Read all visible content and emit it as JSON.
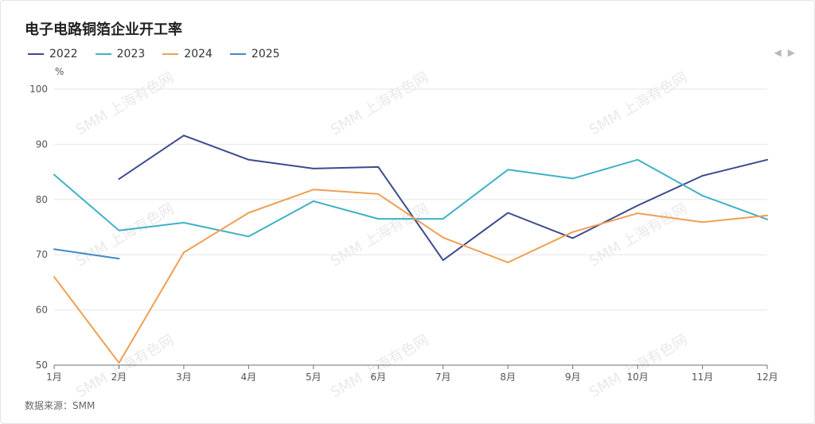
{
  "chart_data": {
    "type": "line",
    "title": "电子电路铜箔企业开工率",
    "unit": "%",
    "source": "数据来源：SMM",
    "watermark": "SMM 上海有色网",
    "categories": [
      "1月",
      "2月",
      "3月",
      "4月",
      "5月",
      "6月",
      "7月",
      "8月",
      "9月",
      "10月",
      "11月",
      "12月"
    ],
    "ylim": [
      50,
      100
    ],
    "yticks": [
      50,
      60,
      70,
      80,
      90,
      100
    ],
    "grid": true,
    "legend_position": "top-left",
    "series": [
      {
        "name": "2022",
        "color": "#3d4a8c",
        "values": [
          null,
          83.7,
          91.6,
          87.2,
          85.6,
          85.9,
          69.0,
          77.6,
          73.0,
          78.9,
          84.3,
          87.2
        ]
      },
      {
        "name": "2023",
        "color": "#3fb1c6",
        "values": [
          84.5,
          74.4,
          75.8,
          73.3,
          79.7,
          76.5,
          76.5,
          85.4,
          83.8,
          87.2,
          80.7,
          76.4
        ]
      },
      {
        "name": "2024",
        "color": "#ef9f53",
        "values": [
          66.0,
          50.4,
          70.4,
          77.6,
          81.8,
          81.0,
          73.1,
          68.6,
          74.1,
          77.5,
          75.9,
          77.1
        ]
      },
      {
        "name": "2025",
        "color": "#3f8ac9",
        "values": [
          71.0,
          69.3,
          null,
          null,
          null,
          null,
          null,
          null,
          null,
          null,
          null,
          null
        ]
      }
    ]
  }
}
